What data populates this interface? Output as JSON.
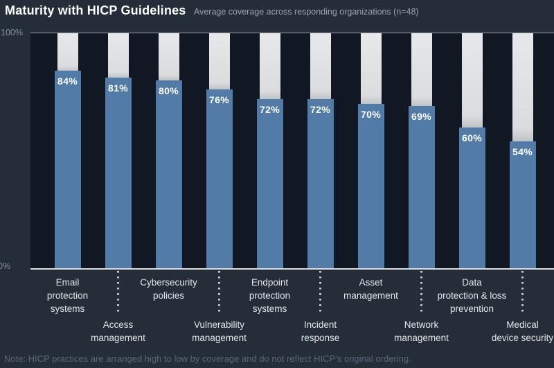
{
  "header": {
    "title": "Maturity with HICP Guidelines",
    "subtitle": "Average coverage across responding organizations (n=48)"
  },
  "chart_data": {
    "type": "bar",
    "title": "Maturity with HICP Guidelines",
    "subtitle": "Average coverage across responding organizations (n=48)",
    "categories": [
      "Email protection systems",
      "Access management",
      "Cybersecurity policies",
      "Vulnerability management",
      "Endpoint protection systems",
      "Incident response",
      "Asset management",
      "Network management",
      "Data protection & loss prevention",
      "Medical device security"
    ],
    "category_lines": [
      [
        "Email",
        "protection",
        "systems"
      ],
      [
        "Access",
        "management"
      ],
      [
        "Cybersecurity",
        "policies"
      ],
      [
        "Vulnerability",
        "management"
      ],
      [
        "Endpoint",
        "protection",
        "systems"
      ],
      [
        "Incident",
        "response"
      ],
      [
        "Asset",
        "management"
      ],
      [
        "Network",
        "management"
      ],
      [
        "Data",
        "protection & loss",
        "prevention"
      ],
      [
        "Medical",
        "device security"
      ]
    ],
    "values": [
      84,
      81,
      80,
      76,
      72,
      72,
      70,
      69,
      60,
      54
    ],
    "value_labels": [
      "84%",
      "81%",
      "80%",
      "76%",
      "72%",
      "72%",
      "70%",
      "69%",
      "60%",
      "54%"
    ],
    "ylim": [
      0,
      100
    ],
    "y_ticks": [
      "100%",
      "0%"
    ],
    "grid": false,
    "legend": false,
    "bar_color": "#527ca7",
    "remainder_color": "#dcdfe0",
    "plot_background": "#111823",
    "page_background": "#242d38",
    "label_layout": "staggered-two-rows"
  },
  "note": "Note: HICP practices are arranged high to low by coverage and do not reflect HICP’s original ordering."
}
